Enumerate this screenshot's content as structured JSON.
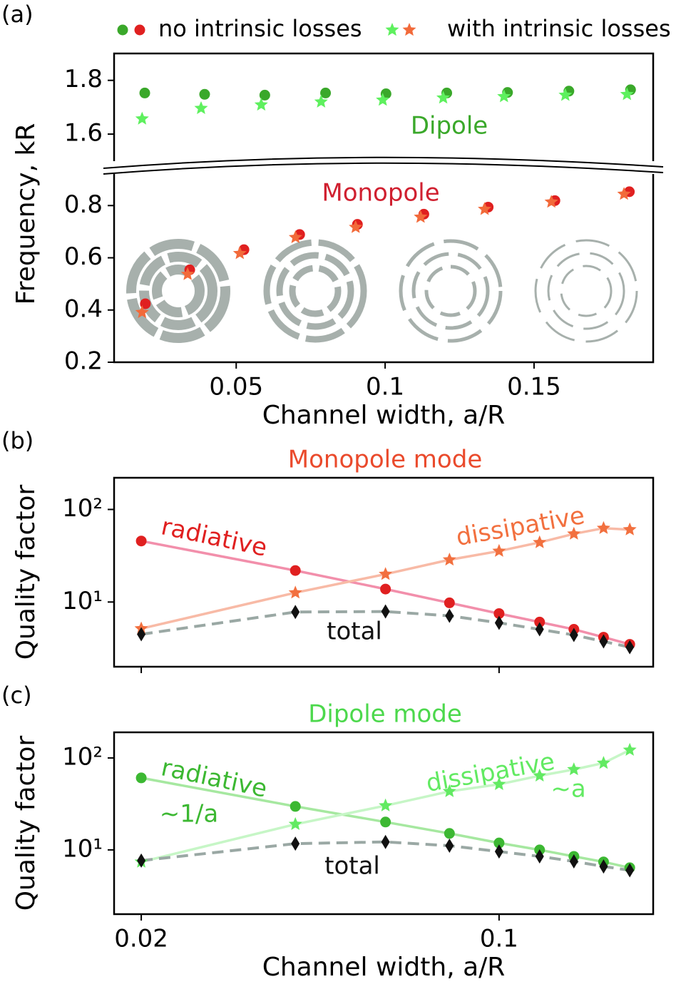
{
  "chart_data": [
    {
      "type": "scatter",
      "panel_label": "(a)",
      "legend": "top",
      "xlim": [
        0.009,
        0.19
      ],
      "ylim": [
        1.51,
        1.9
      ],
      "yticks": [
        1.6,
        1.8
      ],
      "annotations": [
        "Dipole"
      ],
      "series": [
        {
          "name": "no intrinsic losses",
          "marker": "circle",
          "color": "#3aa82a",
          "x": [
            0.0193,
            0.0394,
            0.0596,
            0.08,
            0.1003,
            0.1207,
            0.1411,
            0.1617,
            0.1824
          ],
          "values": [
            1.753,
            1.748,
            1.745,
            1.753,
            1.75,
            1.753,
            1.755,
            1.76,
            1.765
          ]
        },
        {
          "name": "with intrinsic losses",
          "marker": "star",
          "color": "#5ef05e",
          "x": [
            0.0184,
            0.0382,
            0.0584,
            0.0785,
            0.0992,
            0.1195,
            0.1399,
            0.1605,
            0.1812
          ],
          "values": [
            1.657,
            1.696,
            1.709,
            1.72,
            1.727,
            1.735,
            1.74,
            1.745,
            1.748
          ]
        }
      ]
    },
    {
      "type": "scatter",
      "xlim": [
        0.009,
        0.19
      ],
      "ylim": [
        0.2,
        0.91
      ],
      "yticks": [
        0.2,
        0.4,
        0.6,
        0.8
      ],
      "xticks": [
        0.05,
        0.1,
        0.15
      ],
      "x_label": "Channel width, a/R",
      "y_label": "Frequency, kR",
      "annotations": [
        "Monopole"
      ],
      "series": [
        {
          "marker": "circle",
          "color": "#e02020",
          "x": [
            0.0195,
            0.0344,
            0.0526,
            0.0713,
            0.0907,
            0.113,
            0.1346,
            0.157,
            0.182
          ],
          "values": [
            0.424,
            0.554,
            0.631,
            0.689,
            0.728,
            0.767,
            0.794,
            0.819,
            0.853
          ]
        },
        {
          "marker": "star",
          "color": "#f26a3a",
          "x": [
            0.0184,
            0.0337,
            0.0512,
            0.0699,
            0.0901,
            0.1119,
            0.1334,
            0.1558,
            0.1802
          ],
          "values": [
            0.391,
            0.537,
            0.617,
            0.678,
            0.717,
            0.756,
            0.786,
            0.814,
            0.844
          ]
        }
      ]
    },
    {
      "type": "line",
      "panel_label": "(b)",
      "title": "Monopole mode",
      "title_color": "#ea4a2c",
      "y_label": "Quality factor",
      "xscale": "log",
      "yscale": "log",
      "xlim": [
        0.0177,
        0.2
      ],
      "ylim": [
        2,
        220
      ],
      "xticks": [
        0.02,
        0.1
      ],
      "xtick_labels": false,
      "yticks": [
        {
          "value": 10,
          "label": "10¹"
        },
        {
          "value": 100,
          "label": "10²"
        }
      ],
      "x": [
        0.02,
        0.04,
        0.06,
        0.08,
        0.1,
        0.12,
        0.14,
        0.16,
        0.18
      ],
      "series": [
        {
          "name": "radiative",
          "marker": "circle",
          "color": "#e02020",
          "line_color": "#f28fab",
          "values": [
            45.6,
            21.9,
            13.8,
            9.8,
            7.5,
            6.07,
            5.07,
            4.17,
            3.49
          ]
        },
        {
          "name": "dissipative",
          "marker": "star",
          "color": "#f2703f",
          "line_color": "#f8baa6",
          "values": [
            5.16,
            12.6,
            20,
            28.6,
            35.5,
            44,
            54.5,
            62.8,
            60.6
          ]
        },
        {
          "name": "total",
          "marker": "diamond",
          "color": "#111111",
          "line_color": "#9aa8a4",
          "dashed": true,
          "values": [
            4.48,
            7.8,
            7.9,
            7.1,
            5.96,
            5.07,
            4.4,
            3.75,
            3.25
          ]
        }
      ]
    },
    {
      "type": "line",
      "panel_label": "(c)",
      "title": "Dipole mode",
      "title_color": "#4cd84c",
      "y_label": "Quality factor",
      "x_label": "Channel width, a/R",
      "xscale": "log",
      "yscale": "log",
      "xlim": [
        0.0177,
        0.2
      ],
      "ylim": [
        2,
        190
      ],
      "xticks": [
        0.02,
        0.1
      ],
      "yticks": [
        {
          "value": 10,
          "label": "10¹"
        },
        {
          "value": 100,
          "label": "10²"
        }
      ],
      "annotations": [
        "~1/a",
        "~a"
      ],
      "x": [
        0.02,
        0.04,
        0.06,
        0.08,
        0.1,
        0.12,
        0.14,
        0.16,
        0.18
      ],
      "series": [
        {
          "name": "radiative",
          "marker": "circle",
          "color": "#3cb832",
          "line_color": "#a6e8a0",
          "values": [
            60.7,
            29.7,
            20.1,
            15.1,
            11.9,
            10,
            8.5,
            7.4,
            6.4
          ]
        },
        {
          "name": "dissipative",
          "marker": "star",
          "color": "#62ea62",
          "line_color": "#c6f6c6",
          "values": [
            7.4,
            19,
            30.3,
            43.3,
            51.7,
            64,
            75,
            88,
            122
          ]
        },
        {
          "name": "total",
          "marker": "diamond",
          "color": "#111111",
          "line_color": "#9aa8a4",
          "dashed": true,
          "values": [
            7.65,
            11.7,
            12.2,
            11.1,
            9.6,
            8.5,
            7.5,
            6.6,
            6.0
          ]
        }
      ]
    }
  ]
}
